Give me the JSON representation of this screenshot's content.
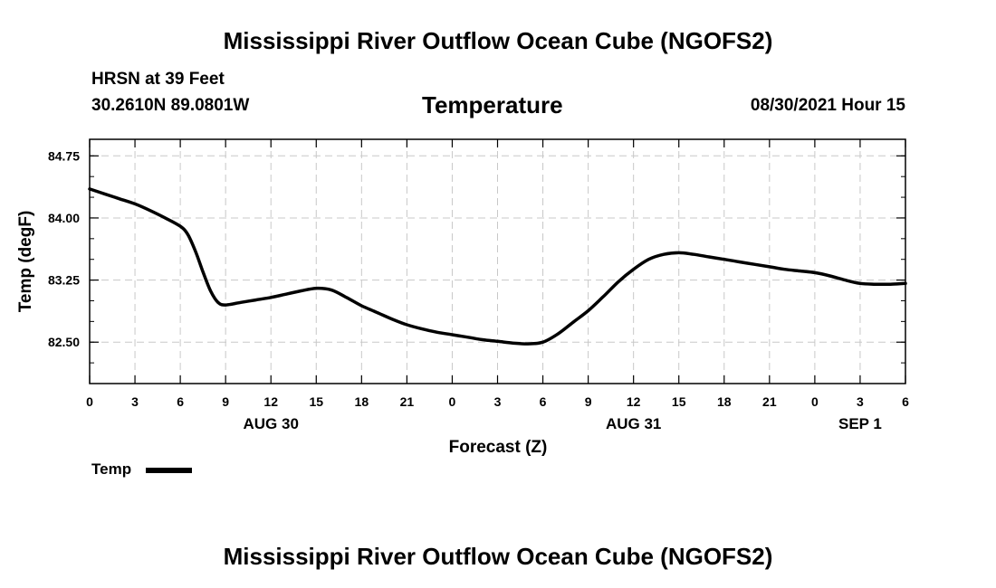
{
  "header": {
    "title": "Mississippi River Outflow Ocean Cube (NGOFS2)",
    "station": "HRSN at 39 Feet",
    "coords": "30.2610N  89.0801W",
    "subtitle": "Temperature",
    "datetime": "08/30/2021 Hour 15"
  },
  "footer": {
    "title": "Mississippi River Outflow Ocean Cube (NGOFS2)"
  },
  "legend": {
    "label": "Temp"
  },
  "chart_data": {
    "type": "line",
    "title": "Temperature",
    "xlabel": "Forecast (Z)",
    "ylabel": "Temp (degF)",
    "xlim": [
      0,
      54
    ],
    "ylim": [
      82.0,
      84.95
    ],
    "grid": true,
    "x_tick_labels": [
      "0",
      "3",
      "6",
      "9",
      "12",
      "15",
      "18",
      "21",
      "0",
      "3",
      "6",
      "9",
      "12",
      "15",
      "18",
      "21",
      "0",
      "3",
      "6"
    ],
    "y_ticks": [
      82.5,
      83.25,
      84.0,
      84.75
    ],
    "y_tick_labels": [
      "82.50",
      "83.25",
      "84.00",
      "84.75"
    ],
    "date_labels": [
      {
        "label": "AUG 30",
        "x": 12
      },
      {
        "label": "AUG 31",
        "x": 36
      },
      {
        "label": "SEP 1",
        "x": 51
      }
    ],
    "series": [
      {
        "name": "Temp",
        "x": [
          0,
          1,
          2,
          3,
          4,
          5,
          6,
          6.5,
          7,
          7.5,
          8,
          8.5,
          9,
          10,
          11,
          12,
          13,
          14,
          15,
          16,
          17,
          18,
          19,
          20,
          21,
          22,
          23,
          24,
          25,
          26,
          27,
          28,
          29,
          30,
          31,
          32,
          33,
          34,
          35,
          36,
          37,
          38,
          39,
          40,
          41,
          42,
          43,
          44,
          45,
          46,
          47,
          48,
          49,
          50,
          51,
          52,
          53,
          54
        ],
        "values": [
          84.35,
          84.29,
          84.23,
          84.17,
          84.09,
          84.0,
          83.9,
          83.8,
          83.6,
          83.35,
          83.12,
          82.98,
          82.95,
          82.98,
          83.01,
          83.04,
          83.08,
          83.12,
          83.15,
          83.13,
          83.04,
          82.94,
          82.86,
          82.78,
          82.71,
          82.66,
          82.62,
          82.59,
          82.56,
          82.53,
          82.51,
          82.49,
          82.48,
          82.5,
          82.6,
          82.74,
          82.88,
          83.05,
          83.23,
          83.38,
          83.5,
          83.56,
          83.58,
          83.56,
          83.53,
          83.5,
          83.47,
          83.44,
          83.41,
          83.38,
          83.36,
          83.34,
          83.3,
          83.25,
          83.21,
          83.2,
          83.2,
          83.21
        ]
      }
    ]
  }
}
